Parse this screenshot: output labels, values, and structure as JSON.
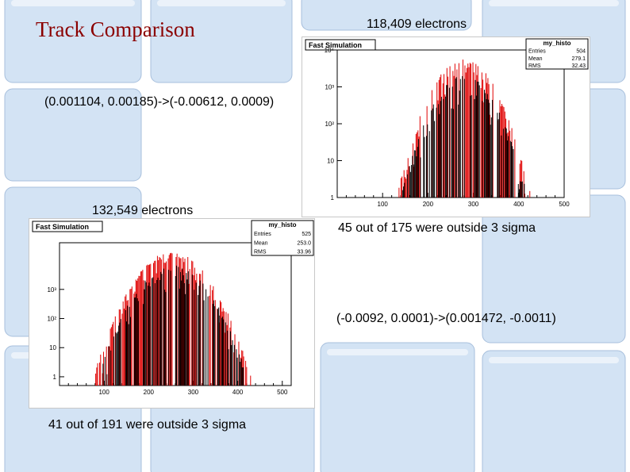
{
  "slide": {
    "title": "Track Comparison",
    "electrons_top": "118,409 electrons",
    "coords_top": "(0.001104, 0.00185)->(-0.00612, 0.0009)",
    "electrons_bottom": "132,549 electrons",
    "outside_top": "45 out of 175 were outside 3 sigma",
    "coords_bottom": "(-0.0092, 0.0001)->(0.001472, -0.0011)",
    "outside_bottom": "41 out of 191 were outside 3 sigma"
  },
  "colors": {
    "title": "#8b0000",
    "series_fast": "#000000",
    "series_full": "#e00000",
    "frame_bg": "#cfe0f2",
    "frame_border": "#9fb8d8"
  },
  "chart_data": [
    {
      "type": "bar",
      "title": "Fast Simulation",
      "stats_box": {
        "name": "my_histo",
        "entries": "504",
        "mean": "279.1",
        "rms": "32.43"
      },
      "xlim": [
        0,
        500
      ],
      "ylim": [
        1,
        10000
      ],
      "log_y": true,
      "x_ticks": [
        "100",
        "200",
        "300",
        "400",
        "500"
      ],
      "y_ticks": [
        "1",
        "10",
        "10²",
        "10³",
        "10⁴"
      ],
      "y_tick_values": [
        1,
        10,
        100,
        1000,
        10000
      ],
      "center": 279,
      "peak": 6000,
      "width": 36,
      "series": [
        {
          "color": "#e00000",
          "scale": 1.0
        },
        {
          "color": "#000000",
          "scale": 0.35
        }
      ]
    },
    {
      "type": "bar",
      "title": "Fast Simulation",
      "stats_box": {
        "name": "my_histo",
        "entries": "525",
        "mean": "253.0",
        "rms": "33.96"
      },
      "xlim": [
        0,
        520
      ],
      "ylim": [
        0.5,
        40000
      ],
      "log_y": true,
      "x_ticks": [
        "100",
        "200",
        "300",
        "400",
        "500"
      ],
      "y_ticks": [
        "1",
        "10",
        "10²",
        "10³"
      ],
      "y_tick_values": [
        1,
        10,
        100,
        1000
      ],
      "center": 253,
      "peak": 20000,
      "width": 40,
      "series": [
        {
          "color": "#e00000",
          "scale": 1.0
        },
        {
          "color": "#000000",
          "scale": 0.35
        }
      ]
    }
  ]
}
